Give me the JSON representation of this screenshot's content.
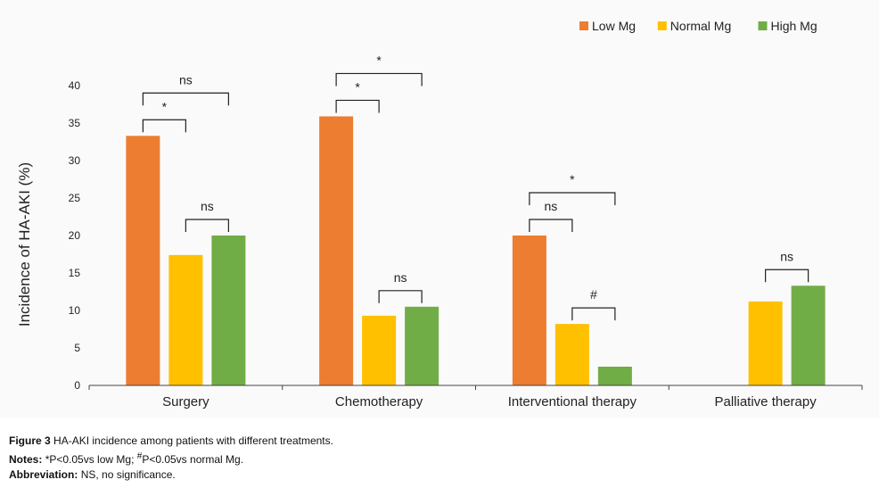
{
  "chart_data": {
    "type": "bar",
    "ylabel": "Incidence of HA-AKI (%)",
    "ylim": [
      0,
      40
    ],
    "yticks": [
      0,
      5,
      10,
      15,
      20,
      25,
      30,
      35,
      40
    ],
    "categories": [
      "Surgery",
      "Chemotherapy",
      "Interventional therapy",
      "Palliative therapy"
    ],
    "series": [
      {
        "name": "Low Mg",
        "color": "#ED7D31",
        "values": [
          33.3,
          35.9,
          20.0,
          null
        ]
      },
      {
        "name": "Normal Mg",
        "color": "#FFC000",
        "values": [
          17.4,
          9.3,
          8.2,
          11.2
        ]
      },
      {
        "name": "High Mg",
        "color": "#70AD47",
        "values": [
          20.0,
          10.5,
          2.5,
          13.3
        ]
      }
    ],
    "legend_position": "top-right",
    "annotations": [
      {
        "category": 0,
        "from": 0,
        "to": 1,
        "label": "*"
      },
      {
        "category": 0,
        "from": 0,
        "to": 2,
        "label": "ns"
      },
      {
        "category": 0,
        "from": 1,
        "to": 2,
        "label": "ns"
      },
      {
        "category": 1,
        "from": 0,
        "to": 1,
        "label": "*"
      },
      {
        "category": 1,
        "from": 0,
        "to": 2,
        "label": "*"
      },
      {
        "category": 1,
        "from": 1,
        "to": 2,
        "label": "ns"
      },
      {
        "category": 2,
        "from": 0,
        "to": 1,
        "label": "ns"
      },
      {
        "category": 2,
        "from": 0,
        "to": 2,
        "label": "*"
      },
      {
        "category": 2,
        "from": 1,
        "to": 2,
        "label": "#"
      },
      {
        "category": 3,
        "from": 1,
        "to": 2,
        "label": "ns"
      }
    ]
  },
  "caption": {
    "figure_label": "Figure 3",
    "figure_text": "HA-AKI incidence among patients with different treatments.",
    "notes_label": "Notes:",
    "notes_sym1": "*",
    "notes_text1": "P<0.05vs low Mg; ",
    "notes_sym2": "#",
    "notes_text2": "P<0.05vs normal Mg.",
    "abbrev_label": "Abbreviation:",
    "abbrev_text": "NS, no significance."
  }
}
